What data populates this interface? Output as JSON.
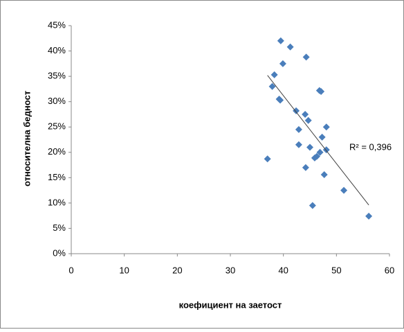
{
  "chart_data": {
    "type": "scatter",
    "x_label": "коефициент на заетост",
    "y_label": "относителна бедност",
    "annotation": "R² = 0,396",
    "color": "#4a7ebb",
    "trendline": {
      "x": [
        37.0,
        56.1
      ],
      "y": [
        35.2,
        9.6
      ],
      "color": "#404040"
    },
    "x": [
      39.5,
      41.3,
      44.3,
      39.9,
      38.3,
      37.9,
      39.2,
      39.4,
      46.8,
      47.1,
      42.4,
      44.1,
      44.7,
      42.9,
      48.1,
      47.3,
      42.9,
      45.0,
      48.1,
      46.9,
      46.3,
      45.9,
      37.0,
      44.2,
      47.7,
      51.4,
      45.5,
      56.1
    ],
    "values": [
      42,
      40.8,
      38.8,
      37.5,
      35.3,
      33,
      30.5,
      30.3,
      32.2,
      32,
      28.2,
      27.5,
      26.3,
      24.5,
      25,
      23,
      21.5,
      21,
      20.5,
      20,
      19.2,
      18.9,
      18.7,
      17,
      15.6,
      12.5,
      9.5,
      7.4
    ],
    "xlim": [
      0,
      60
    ],
    "xticks": [
      0,
      10,
      20,
      30,
      40,
      50,
      60
    ],
    "ylim": [
      0,
      45
    ],
    "yticks": [
      {
        "value": 0,
        "label": "0%"
      },
      {
        "value": 5,
        "label": "5%"
      },
      {
        "value": 10,
        "label": "10%"
      },
      {
        "value": 15,
        "label": "15%"
      },
      {
        "value": 20,
        "label": "20%"
      },
      {
        "value": 25,
        "label": "25%"
      },
      {
        "value": 30,
        "label": "30%"
      },
      {
        "value": 35,
        "label": "35%"
      },
      {
        "value": 40,
        "label": "40%"
      },
      {
        "value": 45,
        "label": "45%"
      }
    ]
  }
}
